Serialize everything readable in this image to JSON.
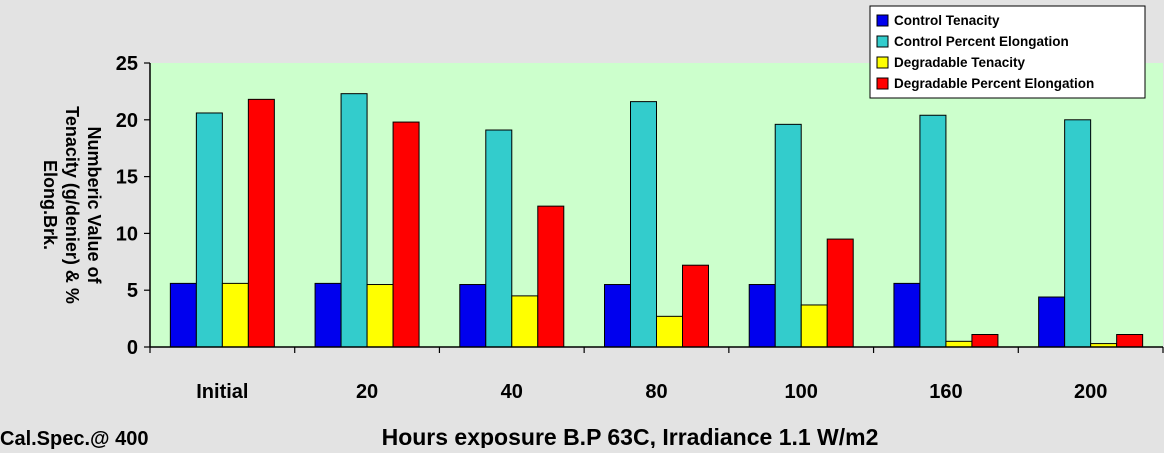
{
  "chart_data": {
    "type": "bar",
    "categories": [
      "Initial",
      "20",
      "40",
      "80",
      "100",
      "160",
      "200"
    ],
    "series": [
      {
        "name": "Control Tenacity",
        "color": "#0000ee",
        "values": [
          5.6,
          5.6,
          5.5,
          5.5,
          5.5,
          5.6,
          4.4
        ]
      },
      {
        "name": "Control Percent Elongation",
        "color": "#33cccc",
        "values": [
          20.6,
          22.3,
          19.1,
          21.6,
          19.6,
          20.4,
          20.0
        ]
      },
      {
        "name": "Degradable Tenacity",
        "color": "#ffff00",
        "values": [
          5.6,
          5.5,
          4.5,
          2.7,
          3.7,
          0.5,
          0.3
        ]
      },
      {
        "name": "Degradable Percent Elongation",
        "color": "#ff0000",
        "values": [
          21.8,
          19.8,
          12.4,
          7.2,
          9.5,
          1.1,
          1.1
        ]
      }
    ],
    "xlabel": "Hours exposure B.P 63C, Irradiance 1.1 W/m2",
    "ylabel_lines": [
      "Numberic Value of",
      "Tenacity (g/denier) & %",
      "Elong.Brk."
    ],
    "ylim": [
      0,
      25
    ],
    "yticks": [
      0,
      5,
      10,
      15,
      20,
      25
    ],
    "grid": false,
    "legend_position": "top-right",
    "plot_background": "#ccffcc",
    "footnote": "Cal.Spec.@ 400"
  }
}
